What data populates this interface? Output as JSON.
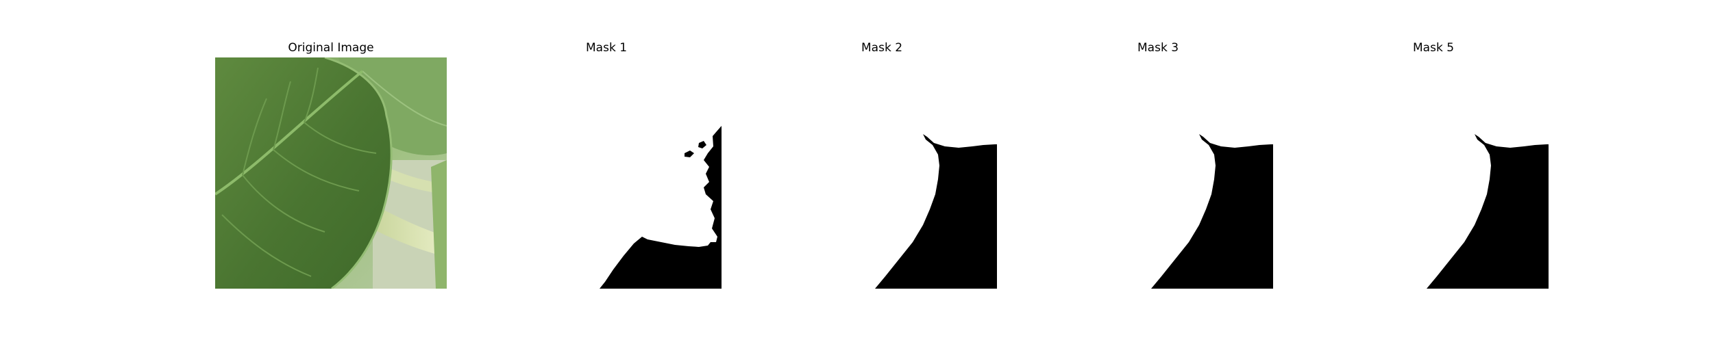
{
  "panels": [
    {
      "title": "Original Image"
    },
    {
      "title": "Mask 1"
    },
    {
      "title": "Mask 2"
    },
    {
      "title": "Mask 3"
    },
    {
      "title": "Mask 5"
    }
  ],
  "colors": {
    "background": "#ffffff",
    "mask_foreground": "#000000",
    "leaf_dark": "#4d7a33",
    "leaf_light": "#8ab36a",
    "stem_pale": "#dfe6b8"
  }
}
